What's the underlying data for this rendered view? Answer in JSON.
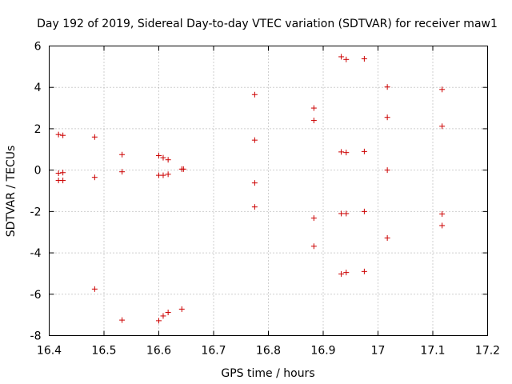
{
  "chart_data": {
    "type": "scatter",
    "title": "Day 192 of 2019, Sidereal Day-to-day VTEC variation (SDTVAR) for receiver maw1",
    "xlabel": "GPS time / hours",
    "ylabel": "SDTVAR / TECUs",
    "xlim": [
      16.4,
      17.2
    ],
    "ylim": [
      -8,
      6
    ],
    "xticks": [
      16.4,
      16.5,
      16.6,
      16.7,
      16.8,
      16.9,
      17.0,
      17.1,
      17.2
    ],
    "xtick_labels": [
      "16.4",
      "16.5",
      "16.6",
      "16.7",
      "16.8",
      "16.9",
      "17",
      "17.1",
      "17.2"
    ],
    "yticks": [
      -8,
      -6,
      -4,
      -2,
      0,
      2,
      4,
      6
    ],
    "ytick_labels": [
      "-8",
      "-6",
      "-4",
      "-2",
      "0",
      "2",
      "4",
      "6"
    ],
    "grid": true,
    "marker": "+",
    "color": "#cc0000",
    "points": [
      [
        16.417,
        1.72
      ],
      [
        16.425,
        1.68
      ],
      [
        16.417,
        -0.15
      ],
      [
        16.425,
        -0.12
      ],
      [
        16.417,
        -0.5
      ],
      [
        16.425,
        -0.5
      ],
      [
        16.483,
        1.6
      ],
      [
        16.483,
        -0.35
      ],
      [
        16.483,
        -5.75
      ],
      [
        16.533,
        0.75
      ],
      [
        16.533,
        -0.08
      ],
      [
        16.533,
        -7.25
      ],
      [
        16.6,
        0.7
      ],
      [
        16.608,
        0.6
      ],
      [
        16.617,
        0.5
      ],
      [
        16.6,
        -0.25
      ],
      [
        16.608,
        -0.25
      ],
      [
        16.617,
        -0.2
      ],
      [
        16.642,
        0.05
      ],
      [
        16.645,
        0.05
      ],
      [
        16.6,
        -7.28
      ],
      [
        16.608,
        -7.05
      ],
      [
        16.617,
        -6.88
      ],
      [
        16.642,
        -6.72
      ],
      [
        16.775,
        3.65
      ],
      [
        16.775,
        1.45
      ],
      [
        16.775,
        -0.62
      ],
      [
        16.775,
        -1.78
      ],
      [
        16.883,
        3.0
      ],
      [
        16.883,
        2.4
      ],
      [
        16.883,
        -2.32
      ],
      [
        16.883,
        -3.68
      ],
      [
        16.933,
        5.48
      ],
      [
        16.942,
        5.35
      ],
      [
        16.933,
        0.88
      ],
      [
        16.942,
        0.85
      ],
      [
        16.933,
        -2.1
      ],
      [
        16.942,
        -2.1
      ],
      [
        16.933,
        -5.02
      ],
      [
        16.942,
        -4.95
      ],
      [
        16.975,
        5.38
      ],
      [
        16.975,
        0.9
      ],
      [
        16.975,
        -2.0
      ],
      [
        16.975,
        -4.9
      ],
      [
        17.017,
        4.02
      ],
      [
        17.017,
        2.55
      ],
      [
        17.017,
        0.0
      ],
      [
        17.017,
        -3.28
      ],
      [
        17.117,
        3.9
      ],
      [
        17.117,
        2.12
      ],
      [
        17.117,
        -2.12
      ],
      [
        17.117,
        -2.68
      ]
    ]
  }
}
